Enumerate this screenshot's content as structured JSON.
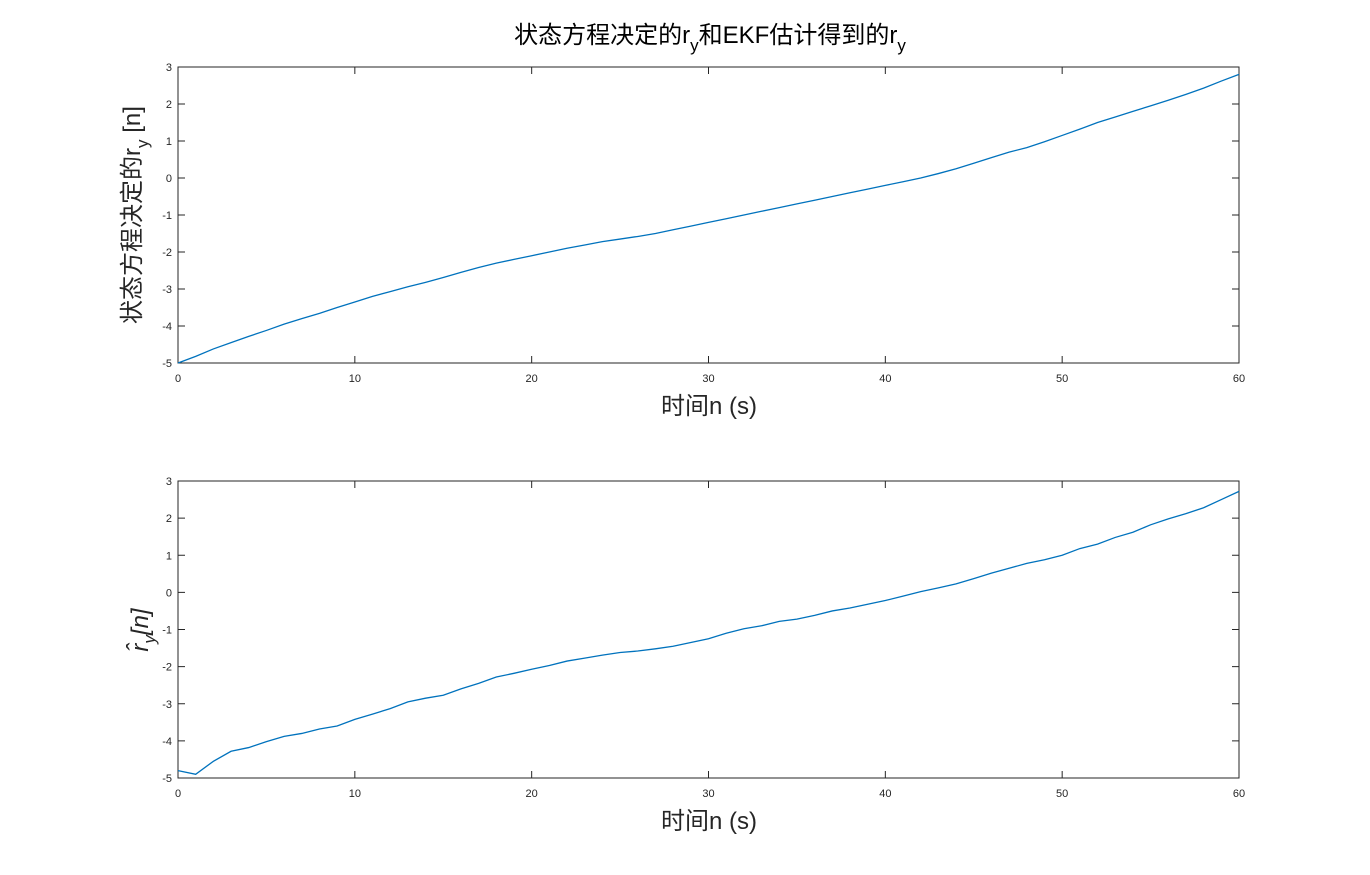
{
  "chart_data": [
    {
      "type": "line",
      "title": "状态方程决定的r",
      "title_subscript": "y",
      "title_mid": "和EKF估计得到的r",
      "title_subscript2": "y",
      "xlabel": "时间n (s)",
      "ylabel": "状态方程决定的r",
      "ylabel_subscript": "y",
      "ylabel_suffix": " [n]",
      "xlim": [
        0,
        60
      ],
      "ylim": [
        -5,
        3
      ],
      "xticks": [
        "0",
        "10",
        "20",
        "30",
        "40",
        "50",
        "60"
      ],
      "yticks": [
        "-5",
        "-4",
        "-3",
        "-2",
        "-1",
        "0",
        "1",
        "2",
        "3"
      ],
      "grid": false,
      "color": "#0072BD",
      "x": [
        0,
        1,
        2,
        3,
        4,
        5,
        6,
        7,
        8,
        9,
        10,
        11,
        12,
        13,
        14,
        15,
        16,
        17,
        18,
        19,
        20,
        21,
        22,
        23,
        24,
        25,
        26,
        27,
        28,
        29,
        30,
        31,
        32,
        33,
        34,
        35,
        36,
        37,
        38,
        39,
        40,
        41,
        42,
        43,
        44,
        45,
        46,
        47,
        48,
        49,
        50,
        51,
        52,
        53,
        54,
        55,
        56,
        57,
        58,
        59,
        60
      ],
      "values": [
        -5.0,
        -4.82,
        -4.62,
        -4.45,
        -4.28,
        -4.12,
        -3.95,
        -3.8,
        -3.66,
        -3.5,
        -3.35,
        -3.2,
        -3.07,
        -2.94,
        -2.82,
        -2.69,
        -2.55,
        -2.42,
        -2.3,
        -2.2,
        -2.1,
        -2.0,
        -1.9,
        -1.81,
        -1.72,
        -1.65,
        -1.58,
        -1.5,
        -1.4,
        -1.3,
        -1.2,
        -1.1,
        -1.0,
        -0.9,
        -0.8,
        -0.7,
        -0.6,
        -0.5,
        -0.4,
        -0.3,
        -0.2,
        -0.1,
        0.0,
        0.12,
        0.25,
        0.4,
        0.55,
        0.7,
        0.82,
        0.98,
        1.15,
        1.32,
        1.5,
        1.65,
        1.8,
        1.95,
        2.1,
        2.26,
        2.43,
        2.62,
        2.8
      ]
    },
    {
      "type": "line",
      "xlabel": "时间n (s)",
      "ylabel": "r̂",
      "ylabel_subscript": "y",
      "ylabel_suffix": "[n]",
      "xlim": [
        0,
        60
      ],
      "ylim": [
        -5,
        3
      ],
      "xticks": [
        "0",
        "10",
        "20",
        "30",
        "40",
        "50",
        "60"
      ],
      "yticks": [
        "-5",
        "-4",
        "-3",
        "-2",
        "-1",
        "0",
        "1",
        "2",
        "3"
      ],
      "grid": false,
      "color": "#0072BD",
      "x": [
        0,
        1,
        2,
        3,
        4,
        5,
        6,
        7,
        8,
        9,
        10,
        11,
        12,
        13,
        14,
        15,
        16,
        17,
        18,
        19,
        20,
        21,
        22,
        23,
        24,
        25,
        26,
        27,
        28,
        29,
        30,
        31,
        32,
        33,
        34,
        35,
        36,
        37,
        38,
        39,
        40,
        41,
        42,
        43,
        44,
        45,
        46,
        47,
        48,
        49,
        50,
        51,
        52,
        53,
        54,
        55,
        56,
        57,
        58,
        59,
        60
      ],
      "values": [
        -4.8,
        -4.9,
        -4.55,
        -4.28,
        -4.18,
        -4.02,
        -3.88,
        -3.8,
        -3.68,
        -3.6,
        -3.42,
        -3.28,
        -3.13,
        -2.95,
        -2.85,
        -2.77,
        -2.6,
        -2.45,
        -2.28,
        -2.18,
        -2.07,
        -1.97,
        -1.85,
        -1.77,
        -1.69,
        -1.62,
        -1.58,
        -1.52,
        -1.45,
        -1.35,
        -1.25,
        -1.1,
        -0.98,
        -0.9,
        -0.78,
        -0.72,
        -0.62,
        -0.5,
        -0.42,
        -0.32,
        -0.22,
        -0.1,
        0.02,
        0.12,
        0.23,
        0.37,
        0.52,
        0.65,
        0.78,
        0.88,
        1.0,
        1.18,
        1.3,
        1.48,
        1.62,
        1.82,
        1.98,
        2.12,
        2.28,
        2.5,
        2.72
      ]
    }
  ]
}
